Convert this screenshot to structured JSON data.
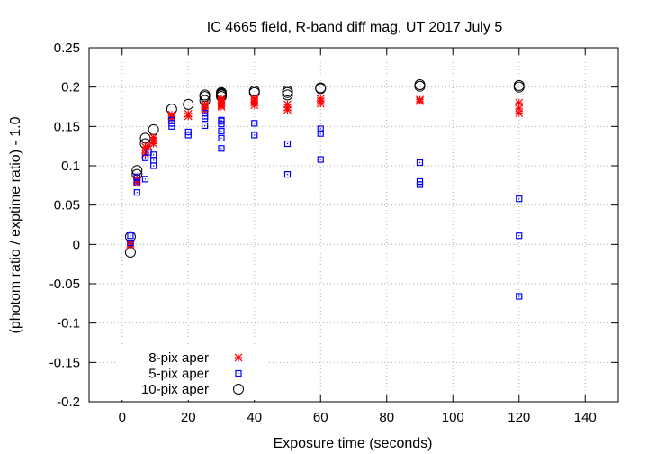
{
  "chart_data": {
    "type": "scatter",
    "title": "IC 4665 field, R-band diff mag, UT 2017 July 5",
    "xlabel": "Exposure time (seconds)",
    "ylabel": "(photom ratio / exptime ratio) - 1.0",
    "xlim": [
      -10,
      150
    ],
    "ylim": [
      -0.2,
      0.25
    ],
    "xticks": [
      0,
      20,
      40,
      60,
      80,
      100,
      120,
      140
    ],
    "yticks": [
      -0.2,
      -0.15,
      -0.1,
      -0.05,
      0,
      0.05,
      0.1,
      0.15,
      0.2,
      0.25
    ],
    "grid": true,
    "legend_position": "bottom-left",
    "series": [
      {
        "name": "8-pix aper",
        "marker": "asterisk",
        "color": "#ff0000",
        "x": [
          2.5,
          2.5,
          4.5,
          4.5,
          4.5,
          7,
          7,
          7,
          8,
          9.5,
          9.5,
          9.5,
          15,
          15,
          15,
          20,
          20,
          25,
          25,
          25,
          25,
          30,
          30,
          30,
          30,
          30,
          30,
          40,
          40,
          40,
          40,
          50,
          50,
          50,
          60,
          60,
          60,
          90,
          90,
          120,
          120,
          120
        ],
        "y": [
          0.001,
          -0.001,
          0.078,
          0.081,
          0.083,
          0.115,
          0.12,
          0.124,
          0.125,
          0.128,
          0.132,
          0.136,
          0.16,
          0.163,
          0.165,
          0.163,
          0.166,
          0.17,
          0.173,
          0.176,
          0.178,
          0.175,
          0.177,
          0.179,
          0.181,
          0.183,
          0.185,
          0.177,
          0.18,
          0.183,
          0.185,
          0.171,
          0.174,
          0.178,
          0.179,
          0.182,
          0.185,
          0.182,
          0.184,
          0.167,
          0.173,
          0.18
        ]
      },
      {
        "name": "5-pix aper",
        "marker": "dotted-square",
        "color": "#0000ff",
        "x": [
          2.5,
          2.5,
          4.5,
          4.5,
          4.5,
          7,
          7,
          8,
          9.5,
          9.5,
          9.5,
          15,
          15,
          15,
          20,
          20,
          25,
          25,
          25,
          25,
          30,
          30,
          30,
          30,
          30,
          30,
          40,
          40,
          50,
          50,
          60,
          60,
          60,
          90,
          90,
          90,
          120,
          120,
          120
        ],
        "y": [
          0.011,
          0.002,
          0.066,
          0.078,
          0.086,
          0.083,
          0.11,
          0.117,
          0.1,
          0.107,
          0.114,
          0.15,
          0.154,
          0.158,
          0.139,
          0.143,
          0.151,
          0.16,
          0.163,
          0.167,
          0.122,
          0.135,
          0.144,
          0.153,
          0.157,
          0.158,
          0.139,
          0.154,
          0.089,
          0.128,
          0.108,
          0.141,
          0.147,
          0.076,
          0.08,
          0.104,
          -0.066,
          0.011,
          0.058
        ]
      },
      {
        "name": "10-pix aper",
        "marker": "open-circle",
        "color": "#000000",
        "x": [
          2.5,
          2.5,
          4.5,
          4.5,
          7,
          7,
          9.5,
          15,
          20,
          25,
          25,
          25,
          30,
          30,
          30,
          30,
          30,
          40,
          40,
          50,
          50,
          50,
          60,
          60,
          90,
          90,
          120,
          120
        ],
        "y": [
          -0.01,
          0.01,
          0.089,
          0.094,
          0.128,
          0.135,
          0.146,
          0.172,
          0.178,
          0.183,
          0.188,
          0.19,
          0.188,
          0.19,
          0.191,
          0.192,
          0.193,
          0.193,
          0.195,
          0.19,
          0.193,
          0.195,
          0.198,
          0.199,
          0.201,
          0.203,
          0.2,
          0.202
        ]
      }
    ]
  }
}
